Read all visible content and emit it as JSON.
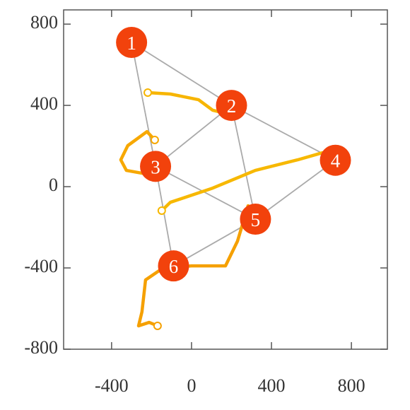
{
  "chart_data": {
    "type": "network",
    "xlim": [
      -640,
      980
    ],
    "ylim": [
      -800,
      870
    ],
    "xticks": [
      -400,
      0,
      400,
      800
    ],
    "yticks": [
      -800,
      -400,
      0,
      400,
      800
    ],
    "node_color": "#f2420c",
    "edge_color": "#aaaaaa",
    "nodes": [
      {
        "label": "1",
        "x": -300,
        "y": 710
      },
      {
        "label": "2",
        "x": 200,
        "y": 400
      },
      {
        "label": "3",
        "x": -180,
        "y": 100
      },
      {
        "label": "4",
        "x": 720,
        "y": 130
      },
      {
        "label": "5",
        "x": 320,
        "y": -160
      },
      {
        "label": "6",
        "x": -90,
        "y": -390
      }
    ],
    "edges": [
      [
        0,
        1
      ],
      [
        0,
        2
      ],
      [
        1,
        2
      ],
      [
        1,
        3
      ],
      [
        1,
        4
      ],
      [
        2,
        4
      ],
      [
        3,
        4
      ],
      [
        2,
        5
      ],
      [
        4,
        5
      ]
    ],
    "series": [
      {
        "color": "#f7b500",
        "marker_at": "start",
        "x": [
          -219,
          -106,
          35,
          106,
          212
        ],
        "y": [
          463,
          456,
          428,
          376,
          351
        ]
      },
      {
        "color": "#f7a800",
        "marker_at": "start",
        "x": [
          -184,
          -223,
          -319,
          -354,
          -326,
          -230
        ],
        "y": [
          230,
          271,
          202,
          132,
          80,
          63
        ]
      },
      {
        "color": "#f7b800",
        "marker_at": "start",
        "x": [
          -149,
          -106,
          106,
          319,
          531,
          655
        ],
        "y": [
          -118,
          -77,
          -7,
          80,
          132,
          167
        ]
      },
      {
        "color": "#f5a000",
        "marker_at": "end",
        "x": [
          283,
          230,
          170,
          0,
          -142,
          -230,
          -248,
          -265,
          -212,
          -170
        ],
        "y": [
          -94,
          -268,
          -390,
          -390,
          -400,
          -459,
          -616,
          -685,
          -668,
          -685
        ]
      }
    ]
  }
}
